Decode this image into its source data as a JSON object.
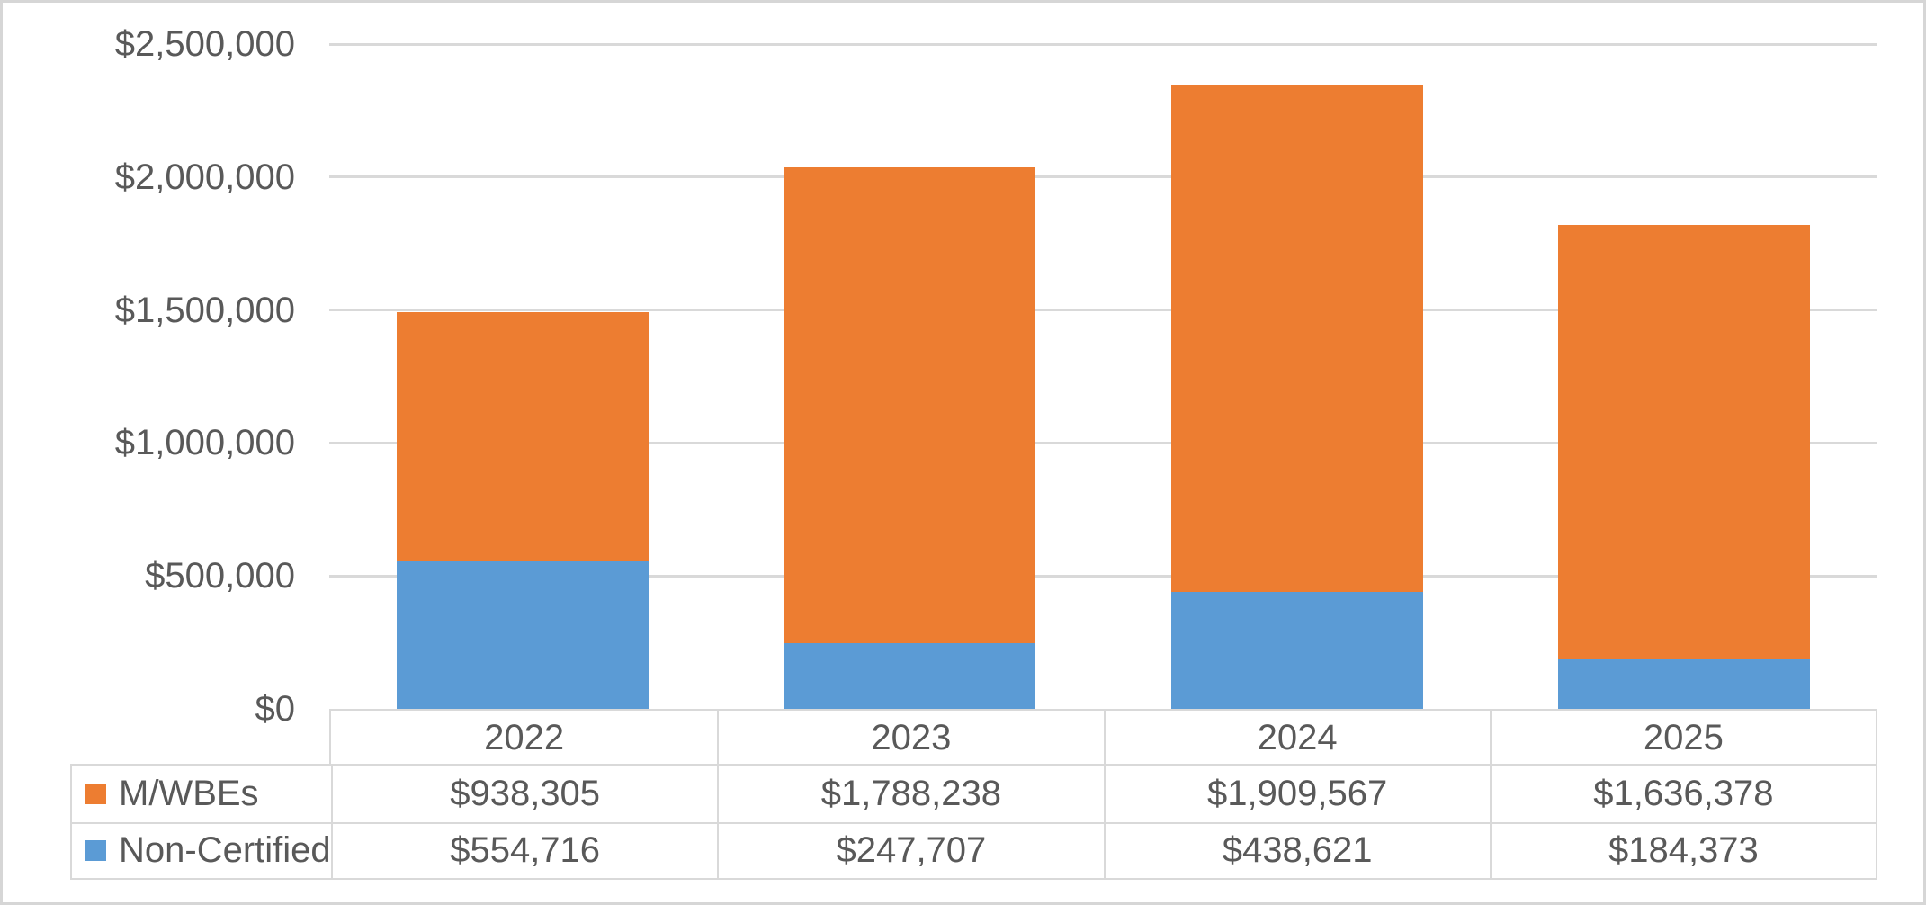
{
  "chart_data": {
    "type": "bar",
    "stacked": true,
    "title": "",
    "categories": [
      "2022",
      "2023",
      "2024",
      "2025"
    ],
    "series": [
      {
        "name": "M/WBEs",
        "color": "#ED7D31",
        "values": [
          938305,
          1788238,
          1909567,
          1636378
        ],
        "display_values": [
          "$938,305",
          "$1,788,238",
          "$1,909,567",
          "$1,636,378"
        ]
      },
      {
        "name": "Non-Certified",
        "color": "#5B9BD5",
        "values": [
          554716,
          247707,
          438621,
          184373
        ],
        "display_values": [
          "$554,716",
          "$247,707",
          "$438,621",
          "$184,373"
        ]
      }
    ],
    "stack_order_bottom_to_top": [
      "Non-Certified",
      "M/WBEs"
    ],
    "y_axis": {
      "min": 0,
      "max": 2500000,
      "tick_interval": 500000,
      "ticks": [
        {
          "value": 0,
          "label": "$0"
        },
        {
          "value": 500000,
          "label": "$500,000"
        },
        {
          "value": 1000000,
          "label": "$1,000,000"
        },
        {
          "value": 1500000,
          "label": "$1,500,000"
        },
        {
          "value": 2000000,
          "label": "$2,000,000"
        },
        {
          "value": 2500000,
          "label": "$2,500,000"
        }
      ]
    },
    "xlabel": "",
    "ylabel": "",
    "grid": true,
    "legend_position": "data-table-left",
    "data_table_shown": true
  },
  "colors": {
    "background": "#FFFFFF",
    "text": "#595959",
    "gridline": "#D9D9D9",
    "table_border": "#D9D9D9",
    "frame_border": "#D6D6D6",
    "series_mwbes": "#ED7D31",
    "series_non_certified": "#5B9BD5"
  }
}
